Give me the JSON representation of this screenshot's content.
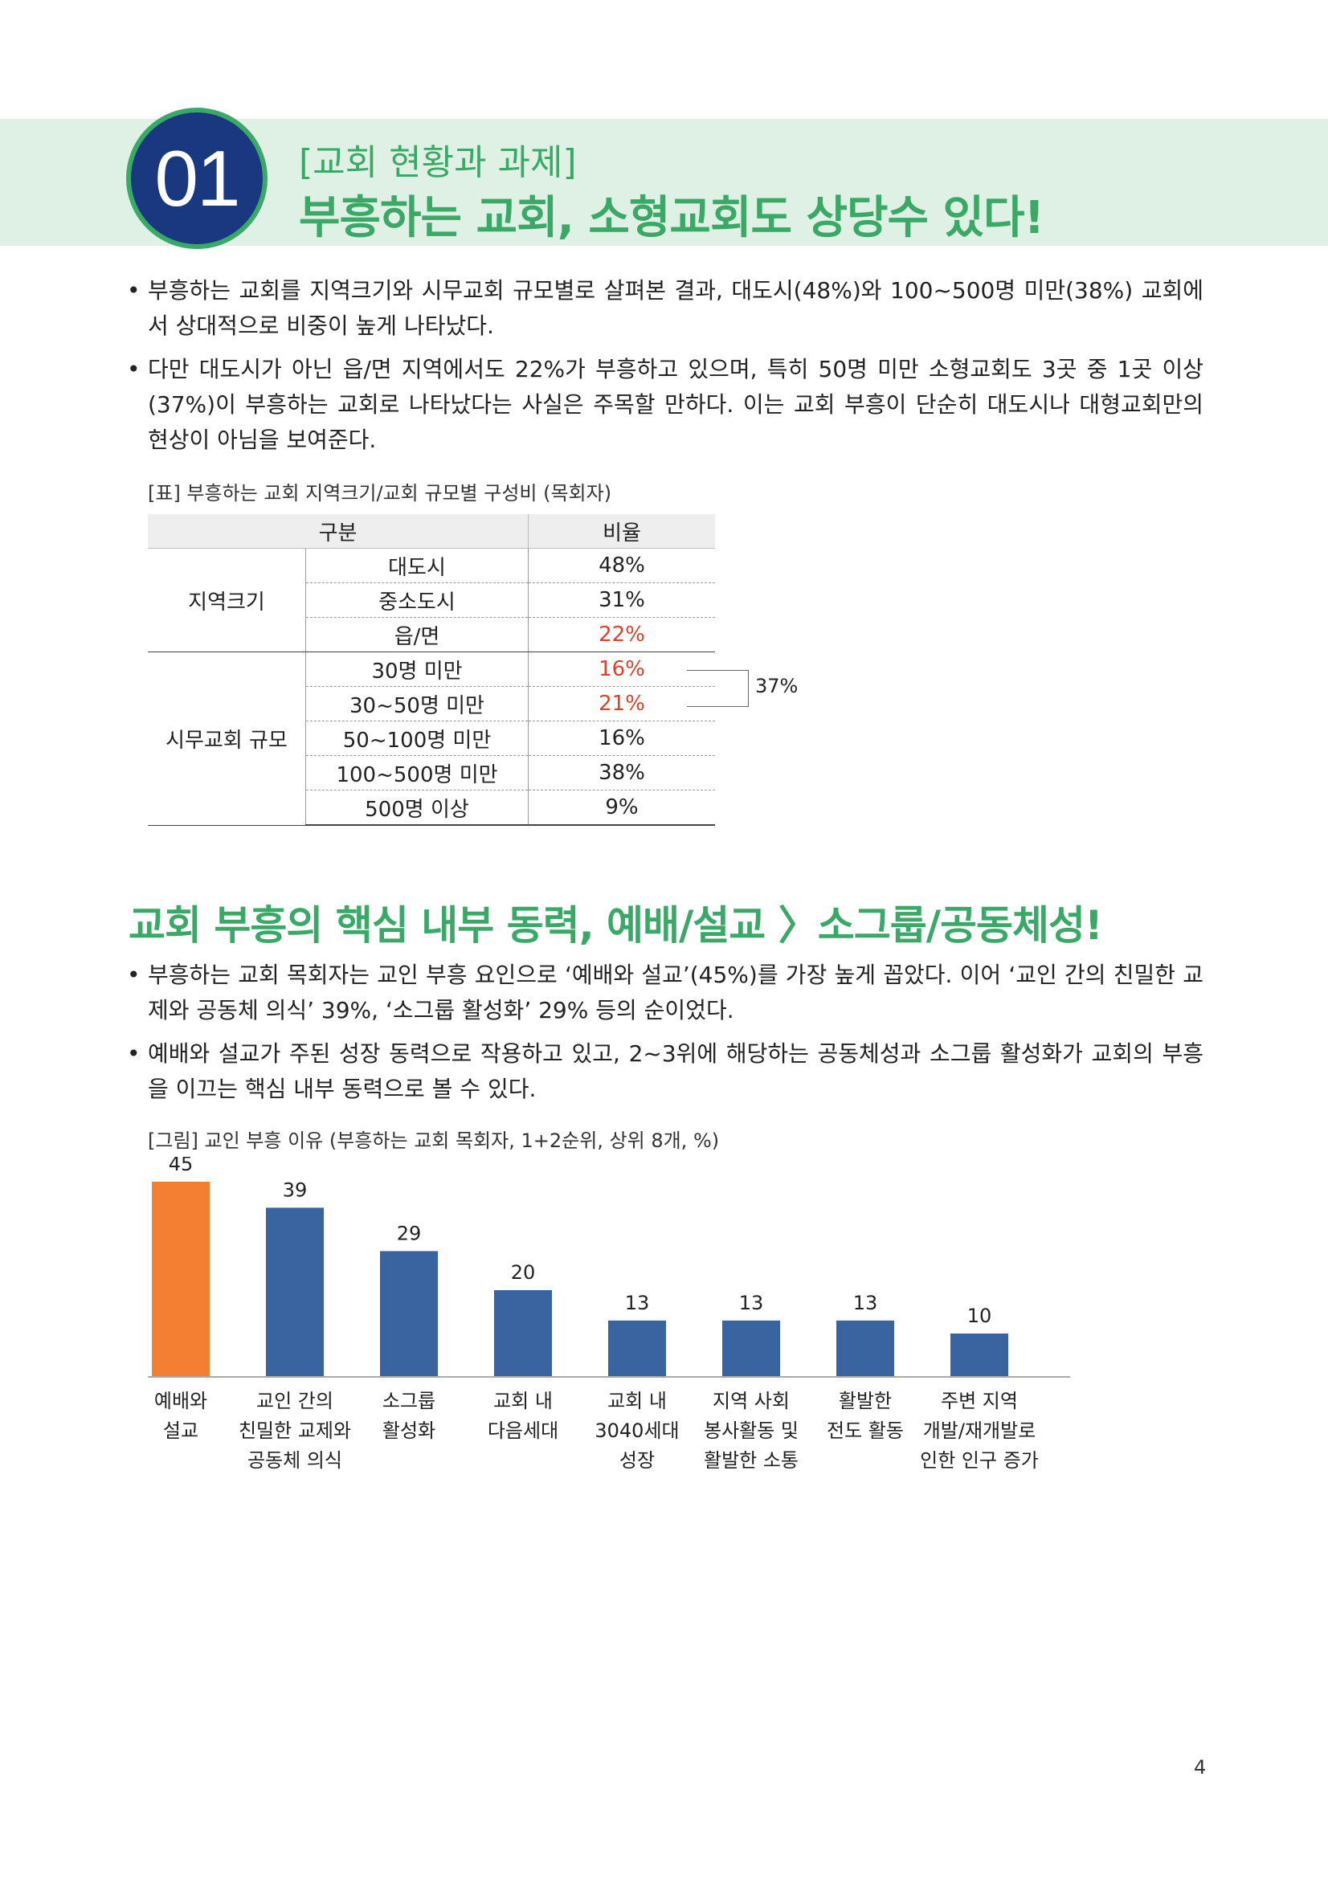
{
  "section1": {
    "number": "01",
    "category": "[교회 현황과 과제]",
    "title": "부흥하는 교회, 소형교회도 상당수 있다!",
    "bullets": [
      "부흥하는 교회를 지역크기와 시무교회 규모별로 살펴본 결과, 대도시(48%)와 100~500명 미만(38%) 교회에서 상대적으로 비중이 높게 나타났다.",
      "다만 대도시가 아닌 읍/면 지역에서도 22%가 부흥하고 있으며, 특히 50명 미만 소형교회도 3곳 중 1곳 이상(37%)이 부흥하는 교회로 나타났다는 사실은 주목할 만하다. 이는 교회 부흥이 단순히 대도시나 대형교회만의 현상이 아님을 보여준다."
    ]
  },
  "table": {
    "caption": "[표] 부흥하는 교회 지역크기/교회 규모별 구성비 (목회자)",
    "headers": [
      "구분",
      "비율"
    ],
    "groups": [
      {
        "label": "지역크기",
        "rows": [
          {
            "label": "대도시",
            "value": "48%"
          },
          {
            "label": "중소도시",
            "value": "31%"
          },
          {
            "label": "읍/면",
            "value": "22%"
          }
        ]
      },
      {
        "label": "시무교회 규모",
        "rows": [
          {
            "label": "30명 미만",
            "value": "16%"
          },
          {
            "label": "30~50명 미만",
            "value": "21%"
          },
          {
            "label": "50~100명 미만",
            "value": "16%"
          },
          {
            "label": "100~500명 미만",
            "value": "38%"
          },
          {
            "label": "500명 이상",
            "value": "9%"
          }
        ]
      }
    ],
    "bracket_label": "37%",
    "highlight_color": "#d9422b"
  },
  "section2": {
    "title": "교회 부흥의 핵심 내부 동력, 예배/설교 〉소그룹/공동체성!",
    "bullets": [
      "부흥하는 교회 목회자는 교인 부흥 요인으로 ‘예배와 설교’(45%)를 가장 높게 꼽았다. 이어 ‘교인 간의 친밀한 교제와 공동체 의식’ 39%, ‘소그룹 활성화’ 29% 등의 순이었다.",
      "예배와 설교가 주된 성장 동력으로 작용하고 있고, 2~3위에 해당하는 공동체성과 소그룹 활성화가 교회의 부흥을 이끄는 핵심 내부 동력으로 볼 수 있다."
    ],
    "figure_caption": "[그림] 교인 부흥 이유 (부흥하는 교회 목회자, 1+2순위, 상위 8개, %)"
  },
  "chart_data": {
    "type": "bar",
    "categories": [
      [
        "예배와",
        "설교"
      ],
      [
        "교인 간의",
        "친밀한 교제와",
        "공동체 의식"
      ],
      [
        "소그룹",
        "활성화"
      ],
      [
        "교회 내",
        "다음세대"
      ],
      [
        "교회 내",
        "3040세대",
        "성장"
      ],
      [
        "지역 사회",
        "봉사활동 및",
        "활발한 소통"
      ],
      [
        "활발한",
        "전도 활동"
      ],
      [
        "주변 지역",
        "개발/재개발로",
        "인한 인구 증가"
      ]
    ],
    "values": [
      45,
      39,
      29,
      20,
      13,
      13,
      13,
      10
    ],
    "value_labels": [
      "45",
      "39",
      "29",
      "20",
      "13",
      "13",
      "13",
      "10"
    ],
    "ylim": [
      0,
      50
    ],
    "grid": false,
    "colors": {
      "highlight": "#f47f30",
      "default": "#3a64a0"
    },
    "highlight_index": 0
  },
  "page_number": "4"
}
